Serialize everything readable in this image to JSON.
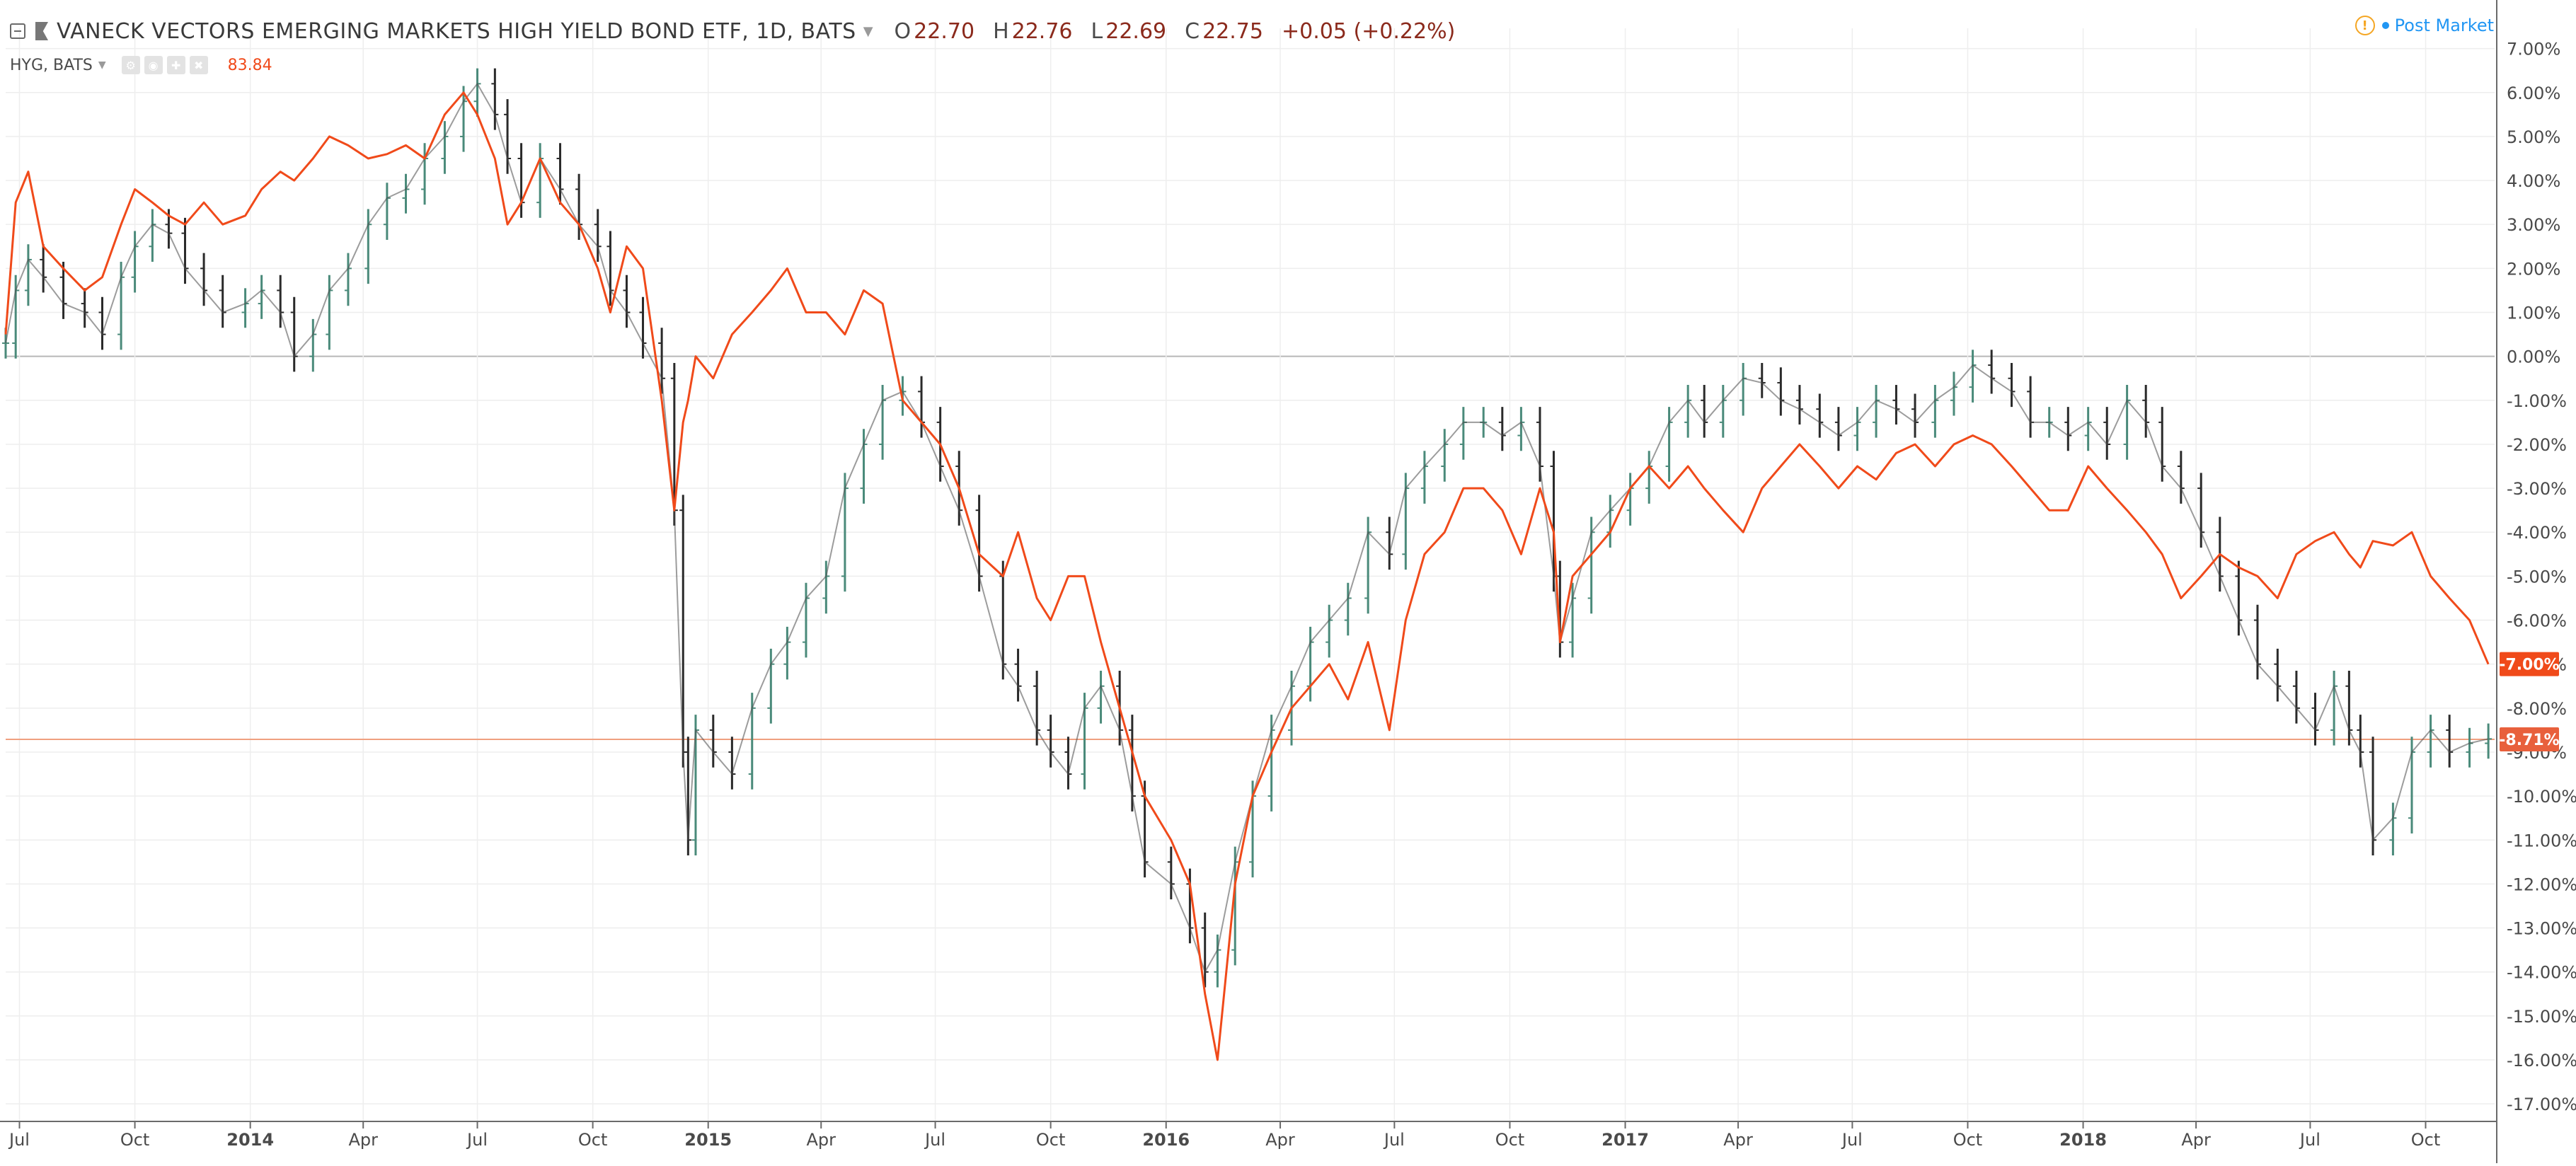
{
  "header": {
    "title": "VANECK VECTORS EMERGING MARKETS HIGH YIELD BOND ETF, 1D, BATS",
    "ohlc": [
      {
        "key": "O",
        "value": "22.70"
      },
      {
        "key": "H",
        "value": "22.76"
      },
      {
        "key": "L",
        "value": "22.69"
      },
      {
        "key": "C",
        "value": "22.75"
      }
    ],
    "change": "+0.05 (+0.22%)",
    "compare_symbol": "HYG, BATS",
    "compare_value": "83.84",
    "post_market": "Post Market"
  },
  "colors": {
    "main_series": "#4a4a4a",
    "up_bar": "#4a8a7a",
    "down_bar": "#2a2a2a",
    "compare_series": "#f04a1a",
    "price_label": "#f04a1a",
    "grid": "#eeeeee",
    "zero_line": "#b8b8b8",
    "post_market": "#2196f3",
    "warning": "#f5a623"
  },
  "icons": [
    "collapse-icon",
    "flag-icon",
    "caret-down-icon",
    "settings-icon",
    "eye-icon",
    "plus-icon",
    "close-icon",
    "warning-icon"
  ],
  "chart_data": {
    "type": "line",
    "title": "VANECK VECTORS EMERGING MARKETS HIGH YIELD BOND ETF, 1D, BATS",
    "y_unit": "%",
    "ylim": [
      -17.4,
      7.3
    ],
    "y_ticks": [
      "7.00%",
      "6.00%",
      "5.00%",
      "4.00%",
      "3.00%",
      "2.00%",
      "1.00%",
      "0.00%",
      "-1.00%",
      "-2.00%",
      "-3.00%",
      "-4.00%",
      "-5.00%",
      "-6.00%",
      "-7.00%",
      "-8.00%",
      "-9.00%",
      "-10.00%",
      "-11.00%",
      "-12.00%",
      "-13.00%",
      "-14.00%",
      "-15.00%",
      "-16.00%",
      "-17.00%"
    ],
    "y_tick_values": [
      7,
      6,
      5,
      4,
      3,
      2,
      1,
      0,
      -1,
      -2,
      -3,
      -4,
      -5,
      -6,
      -7,
      -8,
      -9,
      -10,
      -11,
      -12,
      -13,
      -14,
      -15,
      -16,
      -17
    ],
    "x_range": [
      "2013-06-20",
      "2018-11-25"
    ],
    "x_ticks": [
      {
        "label": "Jul",
        "date": "2013-07-01",
        "bold": false
      },
      {
        "label": "Oct",
        "date": "2013-10-01",
        "bold": false
      },
      {
        "label": "2014",
        "date": "2014-01-01",
        "bold": true
      },
      {
        "label": "Apr",
        "date": "2014-04-01",
        "bold": false
      },
      {
        "label": "Jul",
        "date": "2014-07-01",
        "bold": false
      },
      {
        "label": "Oct",
        "date": "2014-10-01",
        "bold": false
      },
      {
        "label": "2015",
        "date": "2015-01-01",
        "bold": true
      },
      {
        "label": "Apr",
        "date": "2015-04-01",
        "bold": false
      },
      {
        "label": "Jul",
        "date": "2015-07-01",
        "bold": false
      },
      {
        "label": "Oct",
        "date": "2015-10-01",
        "bold": false
      },
      {
        "label": "2016",
        "date": "2016-01-01",
        "bold": true
      },
      {
        "label": "Apr",
        "date": "2016-04-01",
        "bold": false
      },
      {
        "label": "Jul",
        "date": "2016-07-01",
        "bold": false
      },
      {
        "label": "Oct",
        "date": "2016-10-01",
        "bold": false
      },
      {
        "label": "2017",
        "date": "2017-01-01",
        "bold": true
      },
      {
        "label": "Apr",
        "date": "2017-04-01",
        "bold": false
      },
      {
        "label": "Jul",
        "date": "2017-07-01",
        "bold": false
      },
      {
        "label": "Oct",
        "date": "2017-10-01",
        "bold": false
      },
      {
        "label": "2018",
        "date": "2018-01-01",
        "bold": true
      },
      {
        "label": "Apr",
        "date": "2018-04-01",
        "bold": false
      },
      {
        "label": "Jul",
        "date": "2018-07-01",
        "bold": false
      },
      {
        "label": "Oct",
        "date": "2018-10-01",
        "bold": false
      }
    ],
    "grid": true,
    "zero_line": true,
    "price_labels": [
      {
        "series": "HYG, BATS",
        "value": -7.0,
        "text": "-7.00%"
      },
      {
        "series": "VANECK VECTORS EMERGING MARKETS HIGH YIELD BOND ETF, 1D, BATS",
        "value": -8.71,
        "text": "-8.71%"
      }
    ],
    "series": [
      {
        "name": "VANECK VECTORS EMERGING MARKETS HIGH YIELD BOND ETF, 1D, BATS",
        "style": "ohlc-bars",
        "x": [
          "2013-06-20",
          "2013-06-28",
          "2013-07-08",
          "2013-07-20",
          "2013-08-05",
          "2013-08-22",
          "2013-09-05",
          "2013-09-20",
          "2013-10-01",
          "2013-10-15",
          "2013-10-28",
          "2013-11-10",
          "2013-11-25",
          "2013-12-10",
          "2013-12-28",
          "2014-01-10",
          "2014-01-25",
          "2014-02-05",
          "2014-02-20",
          "2014-03-05",
          "2014-03-20",
          "2014-04-05",
          "2014-04-20",
          "2014-05-05",
          "2014-05-20",
          "2014-06-05",
          "2014-06-20",
          "2014-07-01",
          "2014-07-15",
          "2014-07-25",
          "2014-08-05",
          "2014-08-20",
          "2014-09-05",
          "2014-09-20",
          "2014-10-05",
          "2014-10-15",
          "2014-10-28",
          "2014-11-10",
          "2014-11-25",
          "2014-12-05",
          "2014-12-12",
          "2014-12-16",
          "2014-12-22",
          "2015-01-05",
          "2015-01-20",
          "2015-02-05",
          "2015-02-20",
          "2015-03-05",
          "2015-03-20",
          "2015-04-05",
          "2015-04-20",
          "2015-05-05",
          "2015-05-20",
          "2015-06-05",
          "2015-06-20",
          "2015-07-05",
          "2015-07-20",
          "2015-08-05",
          "2015-08-24",
          "2015-09-05",
          "2015-09-20",
          "2015-10-01",
          "2015-10-15",
          "2015-10-28",
          "2015-11-10",
          "2015-11-25",
          "2015-12-05",
          "2015-12-15",
          "2016-01-05",
          "2016-01-20",
          "2016-02-01",
          "2016-02-11",
          "2016-02-25",
          "2016-03-10",
          "2016-03-25",
          "2016-04-10",
          "2016-04-25",
          "2016-05-10",
          "2016-05-25",
          "2016-06-10",
          "2016-06-27",
          "2016-07-10",
          "2016-07-25",
          "2016-08-10",
          "2016-08-25",
          "2016-09-10",
          "2016-09-25",
          "2016-10-10",
          "2016-10-25",
          "2016-11-05",
          "2016-11-10",
          "2016-11-20",
          "2016-12-05",
          "2016-12-20",
          "2017-01-05",
          "2017-01-20",
          "2017-02-05",
          "2017-02-20",
          "2017-03-05",
          "2017-03-20",
          "2017-04-05",
          "2017-04-20",
          "2017-05-05",
          "2017-05-20",
          "2017-06-05",
          "2017-06-20",
          "2017-07-05",
          "2017-07-20",
          "2017-08-05",
          "2017-08-20",
          "2017-09-05",
          "2017-09-20",
          "2017-10-05",
          "2017-10-20",
          "2017-11-05",
          "2017-11-20",
          "2017-12-05",
          "2017-12-20",
          "2018-01-05",
          "2018-01-20",
          "2018-02-05",
          "2018-02-20",
          "2018-03-05",
          "2018-03-20",
          "2018-04-05",
          "2018-04-20",
          "2018-05-05",
          "2018-05-20",
          "2018-06-05",
          "2018-06-20",
          "2018-07-05",
          "2018-07-20",
          "2018-08-01",
          "2018-08-10",
          "2018-08-20",
          "2018-09-05",
          "2018-09-20",
          "2018-10-05",
          "2018-10-20",
          "2018-11-05",
          "2018-11-20"
        ],
        "values": [
          0.3,
          1.5,
          2.2,
          1.8,
          1.2,
          1.0,
          0.5,
          1.8,
          2.5,
          3.0,
          2.8,
          2.0,
          1.5,
          1.0,
          1.2,
          1.5,
          1.0,
          0.0,
          0.5,
          1.5,
          2.0,
          3.0,
          3.6,
          3.8,
          4.5,
          5.0,
          5.8,
          6.2,
          5.5,
          4.5,
          3.5,
          4.5,
          3.8,
          3.0,
          2.5,
          1.5,
          1.0,
          0.3,
          -0.5,
          -3.5,
          -9.0,
          -11.0,
          -8.5,
          -9.0,
          -9.5,
          -8.0,
          -7.0,
          -6.5,
          -5.5,
          -5.0,
          -3.0,
          -2.0,
          -1.0,
          -0.8,
          -1.5,
          -2.5,
          -3.5,
          -5.0,
          -7.0,
          -7.5,
          -8.5,
          -9.0,
          -9.5,
          -8.0,
          -7.5,
          -8.5,
          -10.0,
          -11.5,
          -12.0,
          -13.0,
          -14.0,
          -13.5,
          -11.5,
          -10.0,
          -8.5,
          -7.5,
          -6.5,
          -6.0,
          -5.5,
          -4.0,
          -4.5,
          -3.0,
          -2.5,
          -2.0,
          -1.5,
          -1.5,
          -1.8,
          -1.5,
          -2.5,
          -5.0,
          -6.5,
          -5.5,
          -4.0,
          -3.5,
          -3.0,
          -2.5,
          -1.5,
          -1.0,
          -1.5,
          -1.0,
          -0.5,
          -0.6,
          -1.0,
          -1.2,
          -1.5,
          -1.8,
          -1.5,
          -1.0,
          -1.2,
          -1.5,
          -1.0,
          -0.7,
          -0.2,
          -0.5,
          -0.8,
          -1.5,
          -1.5,
          -1.8,
          -1.5,
          -2.0,
          -1.0,
          -1.5,
          -2.5,
          -3.0,
          -4.0,
          -5.0,
          -6.0,
          -7.0,
          -7.5,
          -8.0,
          -8.5,
          -7.5,
          -8.5,
          -9.0,
          -11.0,
          -10.5,
          -9.0,
          -8.5,
          -9.0,
          -8.8,
          -8.7
        ]
      },
      {
        "name": "HYG, BATS",
        "style": "line",
        "x": [
          "2013-06-20",
          "2013-06-28",
          "2013-07-08",
          "2013-07-20",
          "2013-08-05",
          "2013-08-22",
          "2013-09-05",
          "2013-09-20",
          "2013-10-01",
          "2013-10-15",
          "2013-10-28",
          "2013-11-10",
          "2013-11-25",
          "2013-12-10",
          "2013-12-28",
          "2014-01-10",
          "2014-01-25",
          "2014-02-05",
          "2014-02-20",
          "2014-03-05",
          "2014-03-20",
          "2014-04-05",
          "2014-04-20",
          "2014-05-05",
          "2014-05-20",
          "2014-06-05",
          "2014-06-20",
          "2014-07-01",
          "2014-07-15",
          "2014-07-25",
          "2014-08-05",
          "2014-08-20",
          "2014-09-05",
          "2014-09-20",
          "2014-10-05",
          "2014-10-15",
          "2014-10-28",
          "2014-11-10",
          "2014-11-25",
          "2014-12-05",
          "2014-12-12",
          "2014-12-16",
          "2014-12-22",
          "2015-01-05",
          "2015-01-20",
          "2015-02-05",
          "2015-02-20",
          "2015-03-05",
          "2015-03-20",
          "2015-04-05",
          "2015-04-20",
          "2015-05-05",
          "2015-05-20",
          "2015-06-05",
          "2015-06-20",
          "2015-07-05",
          "2015-07-20",
          "2015-08-05",
          "2015-08-24",
          "2015-09-05",
          "2015-09-20",
          "2015-10-01",
          "2015-10-15",
          "2015-10-28",
          "2015-11-10",
          "2015-11-25",
          "2015-12-05",
          "2015-12-15",
          "2016-01-05",
          "2016-01-20",
          "2016-02-01",
          "2016-02-11",
          "2016-02-25",
          "2016-03-10",
          "2016-03-25",
          "2016-04-10",
          "2016-04-25",
          "2016-05-10",
          "2016-05-25",
          "2016-06-10",
          "2016-06-27",
          "2016-07-10",
          "2016-07-25",
          "2016-08-10",
          "2016-08-25",
          "2016-09-10",
          "2016-09-25",
          "2016-10-10",
          "2016-10-25",
          "2016-11-05",
          "2016-11-10",
          "2016-11-20",
          "2016-12-05",
          "2016-12-20",
          "2017-01-05",
          "2017-01-20",
          "2017-02-05",
          "2017-02-20",
          "2017-03-05",
          "2017-03-20",
          "2017-04-05",
          "2017-04-20",
          "2017-05-05",
          "2017-05-20",
          "2017-06-05",
          "2017-06-20",
          "2017-07-05",
          "2017-07-20",
          "2017-08-05",
          "2017-08-20",
          "2017-09-05",
          "2017-09-20",
          "2017-10-05",
          "2017-10-20",
          "2017-11-05",
          "2017-11-20",
          "2017-12-05",
          "2017-12-20",
          "2018-01-05",
          "2018-01-20",
          "2018-02-05",
          "2018-02-20",
          "2018-03-05",
          "2018-03-20",
          "2018-04-05",
          "2018-04-20",
          "2018-05-05",
          "2018-05-20",
          "2018-06-05",
          "2018-06-20",
          "2018-07-05",
          "2018-07-20",
          "2018-08-01",
          "2018-08-10",
          "2018-08-20",
          "2018-09-05",
          "2018-09-20",
          "2018-10-05",
          "2018-10-20",
          "2018-11-05",
          "2018-11-20"
        ],
        "values": [
          0.5,
          3.5,
          4.2,
          2.5,
          2.0,
          1.5,
          1.8,
          3.0,
          3.8,
          3.5,
          3.2,
          3.0,
          3.5,
          3.0,
          3.2,
          3.8,
          4.2,
          4.0,
          4.5,
          5.0,
          4.8,
          4.5,
          4.6,
          4.8,
          4.5,
          5.5,
          6.0,
          5.5,
          4.5,
          3.0,
          3.5,
          4.5,
          3.5,
          3.0,
          2.0,
          1.0,
          2.5,
          2.0,
          -1.0,
          -3.5,
          -1.5,
          -1.0,
          0.0,
          -0.5,
          0.5,
          1.0,
          1.5,
          2.0,
          1.0,
          1.0,
          0.5,
          1.5,
          1.2,
          -1.0,
          -1.5,
          -2.0,
          -3.0,
          -4.5,
          -5.0,
          -4.0,
          -5.5,
          -6.0,
          -5.0,
          -5.0,
          -6.5,
          -8.0,
          -9.0,
          -10.0,
          -11.0,
          -12.0,
          -14.5,
          -16.0,
          -12.0,
          -10.0,
          -9.0,
          -8.0,
          -7.5,
          -7.0,
          -7.8,
          -6.5,
          -8.5,
          -6.0,
          -4.5,
          -4.0,
          -3.0,
          -3.0,
          -3.5,
          -4.5,
          -3.0,
          -4.0,
          -6.5,
          -5.0,
          -4.5,
          -4.0,
          -3.0,
          -2.5,
          -3.0,
          -2.5,
          -3.0,
          -3.5,
          -4.0,
          -3.0,
          -2.5,
          -2.0,
          -2.5,
          -3.0,
          -2.5,
          -2.8,
          -2.2,
          -2.0,
          -2.5,
          -2.0,
          -1.8,
          -2.0,
          -2.5,
          -3.0,
          -3.5,
          -3.5,
          -2.5,
          -3.0,
          -3.5,
          -4.0,
          -4.5,
          -5.5,
          -5.0,
          -4.5,
          -4.8,
          -5.0,
          -5.5,
          -4.5,
          -4.2,
          -4.0,
          -4.5,
          -4.8,
          -4.2,
          -4.3,
          -4.0,
          -5.0,
          -5.5,
          -6.0,
          -7.0
        ]
      }
    ]
  }
}
